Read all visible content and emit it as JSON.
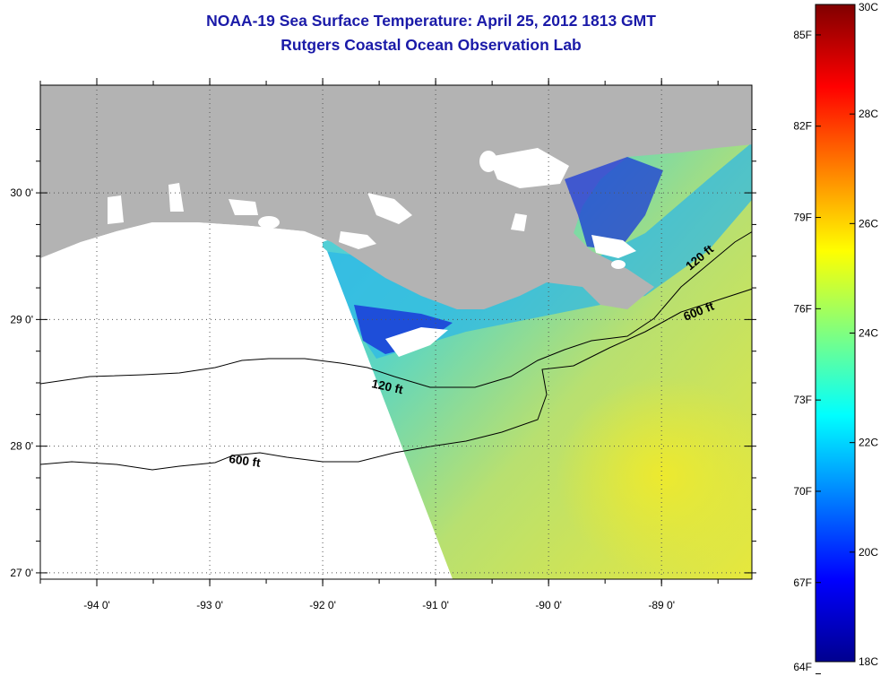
{
  "header": {
    "title": "NOAA-19 Sea Surface Temperature:  April 25, 2012 1813 GMT",
    "subtitle": "Rutgers Coastal Ocean Observation Lab"
  },
  "map": {
    "lon_range": [
      -94.5,
      -88.2
    ],
    "lat_range": [
      26.95,
      30.85
    ],
    "lat_tick_labels": [
      "30 0'",
      "29 0'",
      "28 0'",
      "27 0'"
    ],
    "lon_tick_labels": [
      "-94 0'",
      "-93 0'",
      "-92 0'",
      "-91 0'",
      "-90 0'",
      "-89 0'"
    ],
    "contour_labels": {
      "inner_120": "120 ft",
      "inner_600": "600 ft",
      "east_120": "120 ft",
      "east_600": "600 ft"
    },
    "colors": {
      "land": "#b3b3b3",
      "cloud": "#ffffff",
      "grid": "#555555"
    }
  },
  "colorbar": {
    "fahrenheit_labels": [
      "85F",
      "82F",
      "79F",
      "76F",
      "73F",
      "70F",
      "67F",
      "64F"
    ],
    "celsius_labels": [
      "30C",
      "28C",
      "26C",
      "24C",
      "22C",
      "20C",
      "18C"
    ],
    "range_c": [
      18,
      30
    ],
    "colormap": "jet"
  }
}
